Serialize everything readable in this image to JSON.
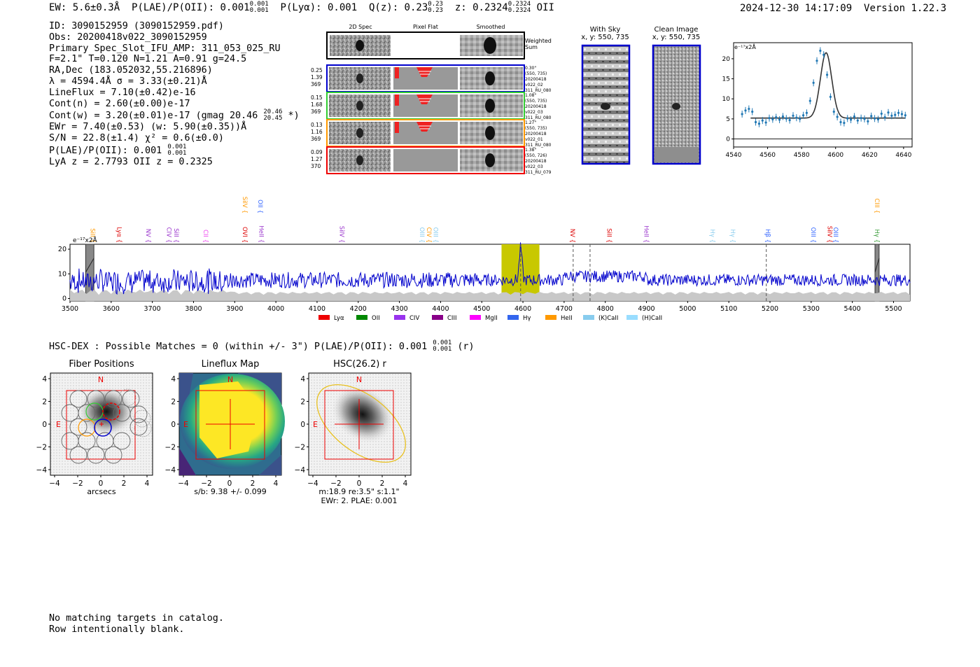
{
  "header": {
    "ew": "EW: 5.6±0.3Å",
    "plae_label": "P(LAE)/P(OII): 0.001",
    "plae_hi": "0.001",
    "plae_lo": "0.001",
    "plya": "P(Lyα): 0.001",
    "qz_label": "Q(z): 0.23",
    "qz_hi": "0.23",
    "qz_lo": "0.23",
    "z_label": "z: 0.2324",
    "z_hi": "0.2324",
    "z_lo": "0.2324",
    "z_line": "OII",
    "timestamp": "2024-12-30 14:17:09",
    "version": "Version 1.22.3"
  },
  "info": {
    "id": "ID: 3090152959 (3090152959.pdf)",
    "obs": "Obs: 20200418v022_3090152959",
    "primary": "Primary Spec_Slot_IFU_AMP: 311_053_025_RU",
    "fta": "F=2.1\"  T=0.120  N=1.21  A=0.91  g=24.5",
    "radec": "RA,Dec (183.052032,55.216896)",
    "lambda": "λ = 4594.4Å  σ = 3.33(±0.21)Å",
    "lineflux": "LineFlux = 7.10(±0.42)e-16",
    "contn": "Cont(n) = 2.60(±0.00)e-17",
    "contw": "Cont(w) = 3.20(±0.01)e-17 (gmag 20.46",
    "contw_hi": "20.46",
    "contw_lo": "20.45",
    "contw_end": "*)",
    "ewr": "EWr = 7.40(±0.53) (w: 5.90(±0.35))Å",
    "sn": "S/N = 22.8(±1.4)  χ² = 0.6(±0.0)",
    "plae2": "P(LAE)/P(OII): 0.001",
    "plae2_hi": "0.001",
    "plae2_lo": "0.001",
    "lya": "LyA z = 2.7793  OII z = 0.2325"
  },
  "cutouts": {
    "col_2d": "2D Spec",
    "col_flat": "Pixel Flat",
    "col_smooth": "Smoothed",
    "weighted": "Weighted Sum",
    "rows": [
      {
        "left": [
          "0.25",
          "1.39",
          "369"
        ],
        "right": [
          "0.30\"",
          "(550, 735)",
          "20200418",
          "v022_02",
          "311_RU_080"
        ],
        "color": "#0000cc"
      },
      {
        "left": [
          "0.15",
          "1.68",
          "369"
        ],
        "right": [
          "1.08\"",
          "(550, 735)",
          "20200418",
          "v022_03",
          "311_RU_080"
        ],
        "color": "#33cc33"
      },
      {
        "left": [
          "0.13",
          "1.16",
          "369"
        ],
        "right": [
          "1.27\"",
          "(550, 735)",
          "20200418",
          "v022_01",
          "311_RU_080"
        ],
        "color": "#ff9900"
      },
      {
        "left": [
          "0.09",
          "1.27",
          "370"
        ],
        "right": [
          "1.38\"",
          "(550, 726)",
          "20200418",
          "v022_03",
          "311_RU_079"
        ],
        "color": "#ee0000"
      }
    ]
  },
  "sky": {
    "with_sky_title": "With Sky",
    "with_sky_sub": "x, y: 550, 735",
    "clean_title": "Clean Image",
    "clean_sub": "x, y: 550, 735"
  },
  "line_fit": {
    "unit": "e⁻¹⁷x2Å",
    "x_ticks": [
      "4540",
      "4560",
      "4580",
      "4600",
      "4620",
      "4640"
    ],
    "y_ticks": [
      "0",
      "5",
      "10",
      "15",
      "20"
    ]
  },
  "chart_data": [
    {
      "type": "scatter",
      "title": "Emission line fit",
      "ylabel": "e-17 x2Å",
      "xlim": [
        4540,
        4645
      ],
      "ylim": [
        -2,
        24
      ],
      "points_x": [
        4545,
        4547,
        4549,
        4551,
        4553,
        4555,
        4557,
        4559,
        4561,
        4563,
        4565,
        4567,
        4569,
        4571,
        4573,
        4575,
        4577,
        4579,
        4581,
        4583,
        4585,
        4587,
        4589,
        4591,
        4593,
        4595,
        4597,
        4599,
        4601,
        4603,
        4605,
        4607,
        4609,
        4611,
        4613,
        4615,
        4617,
        4619,
        4621,
        4623,
        4625,
        4627,
        4629,
        4631,
        4633,
        4635,
        4637,
        4639,
        4641
      ],
      "points_y": [
        6.2,
        7.1,
        7.5,
        6.8,
        4.2,
        3.8,
        4.6,
        4.1,
        5.2,
        4.9,
        5.4,
        4.8,
        5.6,
        5.1,
        4.7,
        5.8,
        5.3,
        5.0,
        5.9,
        6.5,
        9.5,
        14.0,
        19.5,
        22.0,
        21.0,
        16.0,
        10.5,
        6.8,
        5.5,
        4.2,
        4.0,
        5.1,
        4.8,
        5.6,
        4.6,
        5.2,
        5.0,
        4.4,
        5.7,
        5.1,
        4.9,
        6.3,
        5.4,
        6.6,
        5.8,
        6.0,
        6.5,
        6.2,
        5.9
      ],
      "fit_center": 4594.4,
      "fit_sigma": 3.33,
      "fit_continuum": 5.2,
      "fit_peak": 21.5
    },
    {
      "type": "line",
      "title": "Full spectrum",
      "unit": "e⁻¹⁷x2Å",
      "xlim": [
        3500,
        5540
      ],
      "ylim": [
        -1,
        22
      ],
      "x_ticks": [
        "3500",
        "3600",
        "3700",
        "3800",
        "3900",
        "4000",
        "4100",
        "4200",
        "4300",
        "4400",
        "4500",
        "4600",
        "4700",
        "4800",
        "4900",
        "5000",
        "5100",
        "5200",
        "5300",
        "5400",
        "5500"
      ],
      "y_ticks": [
        "0",
        "10",
        "20"
      ],
      "emission_line_center": 4594.4,
      "highlight_range": [
        4548,
        4640
      ],
      "masked_ranges": [
        [
          3538,
          3558
        ],
        [
          5455,
          5465
        ]
      ],
      "dashed_lines": [
        4594.4,
        4722,
        4763,
        5191
      ],
      "continuum_level": 7.5
    }
  ],
  "line_labels": [
    {
      "name": "SiII",
      "x": 3545,
      "color": "#ff9900",
      "row": "low"
    },
    {
      "name": "Lyα",
      "x": 3610,
      "color": "#dd0000",
      "row": "low"
    },
    {
      "name": "NV",
      "x": 3680,
      "color": "#9933cc",
      "row": "low"
    },
    {
      "name": "CIV",
      "x": 3730,
      "color": "#9933cc",
      "row": "low"
    },
    {
      "name": "SiII",
      "x": 3748,
      "color": "#9933cc",
      "row": "low"
    },
    {
      "name": "CII",
      "x": 3820,
      "color": "#ee44ee",
      "row": "low"
    },
    {
      "name": "SiIV",
      "x": 3915,
      "color": "#ff9900",
      "row": "high"
    },
    {
      "name": "OVI",
      "x": 3915,
      "color": "#dd0000",
      "row": "low"
    },
    {
      "name": "OII",
      "x": 3952,
      "color": "#3366ff",
      "row": "high"
    },
    {
      "name": "HeII",
      "x": 3955,
      "color": "#9933cc",
      "row": "low"
    },
    {
      "name": "SiIV",
      "x": 4150,
      "color": "#9933cc",
      "row": "low"
    },
    {
      "name": "OIII",
      "x": 4345,
      "color": "#88ccee",
      "row": "low"
    },
    {
      "name": "CIV",
      "x": 4362,
      "color": "#ff9900",
      "row": "low"
    },
    {
      "name": "OIII",
      "x": 4378,
      "color": "#88ccee",
      "row": "low"
    },
    {
      "name": "NV",
      "x": 4710,
      "color": "#dd0000",
      "row": "low"
    },
    {
      "name": "SiII",
      "x": 4800,
      "color": "#dd0000",
      "row": "low"
    },
    {
      "name": "HeII",
      "x": 4890,
      "color": "#9933cc",
      "row": "low"
    },
    {
      "name": "Hγ",
      "x": 5050,
      "color": "#88ccee",
      "row": "low"
    },
    {
      "name": "Hγ",
      "x": 5100,
      "color": "#88ccee",
      "row": "low"
    },
    {
      "name": "Hβ",
      "x": 5185,
      "color": "#3366ff",
      "row": "low"
    },
    {
      "name": "OIII",
      "x": 5295,
      "color": "#3366ff",
      "row": "low"
    },
    {
      "name": "SiIV",
      "x": 5335,
      "color": "#dd0000",
      "row": "low"
    },
    {
      "name": "OIII",
      "x": 5350,
      "color": "#3366ff",
      "row": "low"
    },
    {
      "name": "CIII",
      "x": 5450,
      "color": "#ff9900",
      "row": "high"
    },
    {
      "name": "Hγ",
      "x": 5450,
      "color": "#339933",
      "row": "low"
    }
  ],
  "legend": [
    {
      "name": "Lyα",
      "color": "#ee0000"
    },
    {
      "name": "OII",
      "color": "#008800"
    },
    {
      "name": "CIV",
      "color": "#9933ee"
    },
    {
      "name": "CIII",
      "color": "#880088"
    },
    {
      "name": "MgII",
      "color": "#ff00ff"
    },
    {
      "name": "Hγ",
      "color": "#3366ee"
    },
    {
      "name": "HeII",
      "color": "#ff9900"
    },
    {
      "name": "(K)CaII",
      "color": "#88ccee"
    },
    {
      "name": "(H)CaII",
      "color": "#99ddff"
    }
  ],
  "hsc": {
    "line": "HSC-DEX : Possible Matches = 0 (within +/- 3\")  P(LAE)/P(OII): 0.001",
    "plae_hi": "0.001",
    "plae_lo": "0.001",
    "band": "(r)"
  },
  "panels": {
    "fiber_title": "Fiber Positions",
    "fiber_xlabel": "arcsecs",
    "lineflux_title": "Lineflux Map",
    "lineflux_xlabel": "s/b: 9.38 +/- 0.099",
    "hsc_title": "HSC(26.2) r",
    "hsc_xlabel1": "m:18.9  re:3.5\"  s:1.1\"",
    "hsc_xlabel2": "EWr: 2. PLAE: 0.001",
    "n_label": "N",
    "e_label": "E",
    "y_ticks": [
      "4",
      "2",
      "0",
      "−2",
      "−4"
    ],
    "x_ticks": [
      "−4",
      "−2",
      "0",
      "2",
      "4"
    ]
  },
  "footer": {
    "line1": "No matching targets in catalog.",
    "line2": "Row intentionally blank."
  }
}
